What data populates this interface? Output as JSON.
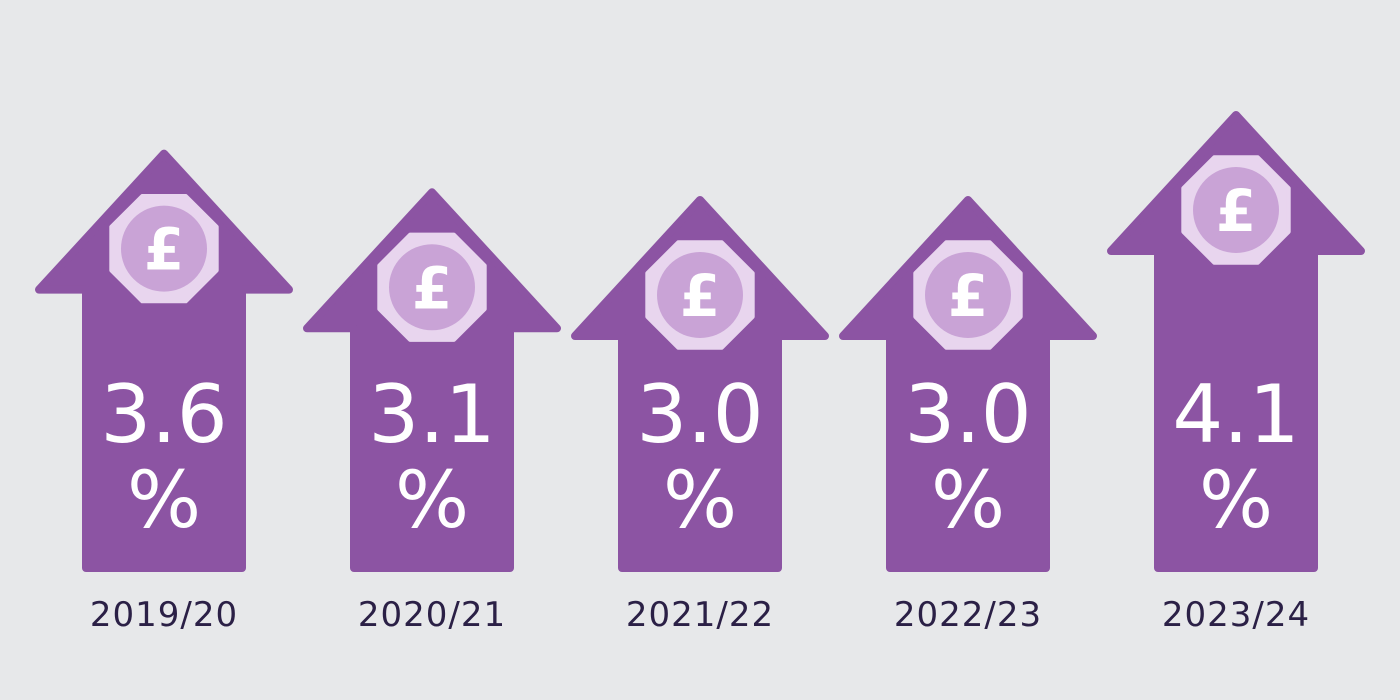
{
  "colors": {
    "background": "#e7e8ea",
    "arrow": "#8c54a3",
    "coin_outer": "#e8d5ee",
    "coin_inner": "#c9a3d6",
    "text_value": "#ffffff",
    "text_year": "#2b2046"
  },
  "icon": "pound-coin-icon",
  "currency_symbol": "£",
  "chart_data": {
    "type": "bar",
    "unit_symbol": "%",
    "categories": [
      "2019/20",
      "2020/21",
      "2021/22",
      "2022/23",
      "2023/24"
    ],
    "values": [
      3.6,
      3.1,
      3.0,
      3.0,
      4.1
    ],
    "value_labels": [
      "3.6",
      "3.1",
      "3.0",
      "3.0",
      "4.1"
    ],
    "title": "",
    "xlabel": "",
    "ylabel": "",
    "legend": "none",
    "grid": false
  }
}
